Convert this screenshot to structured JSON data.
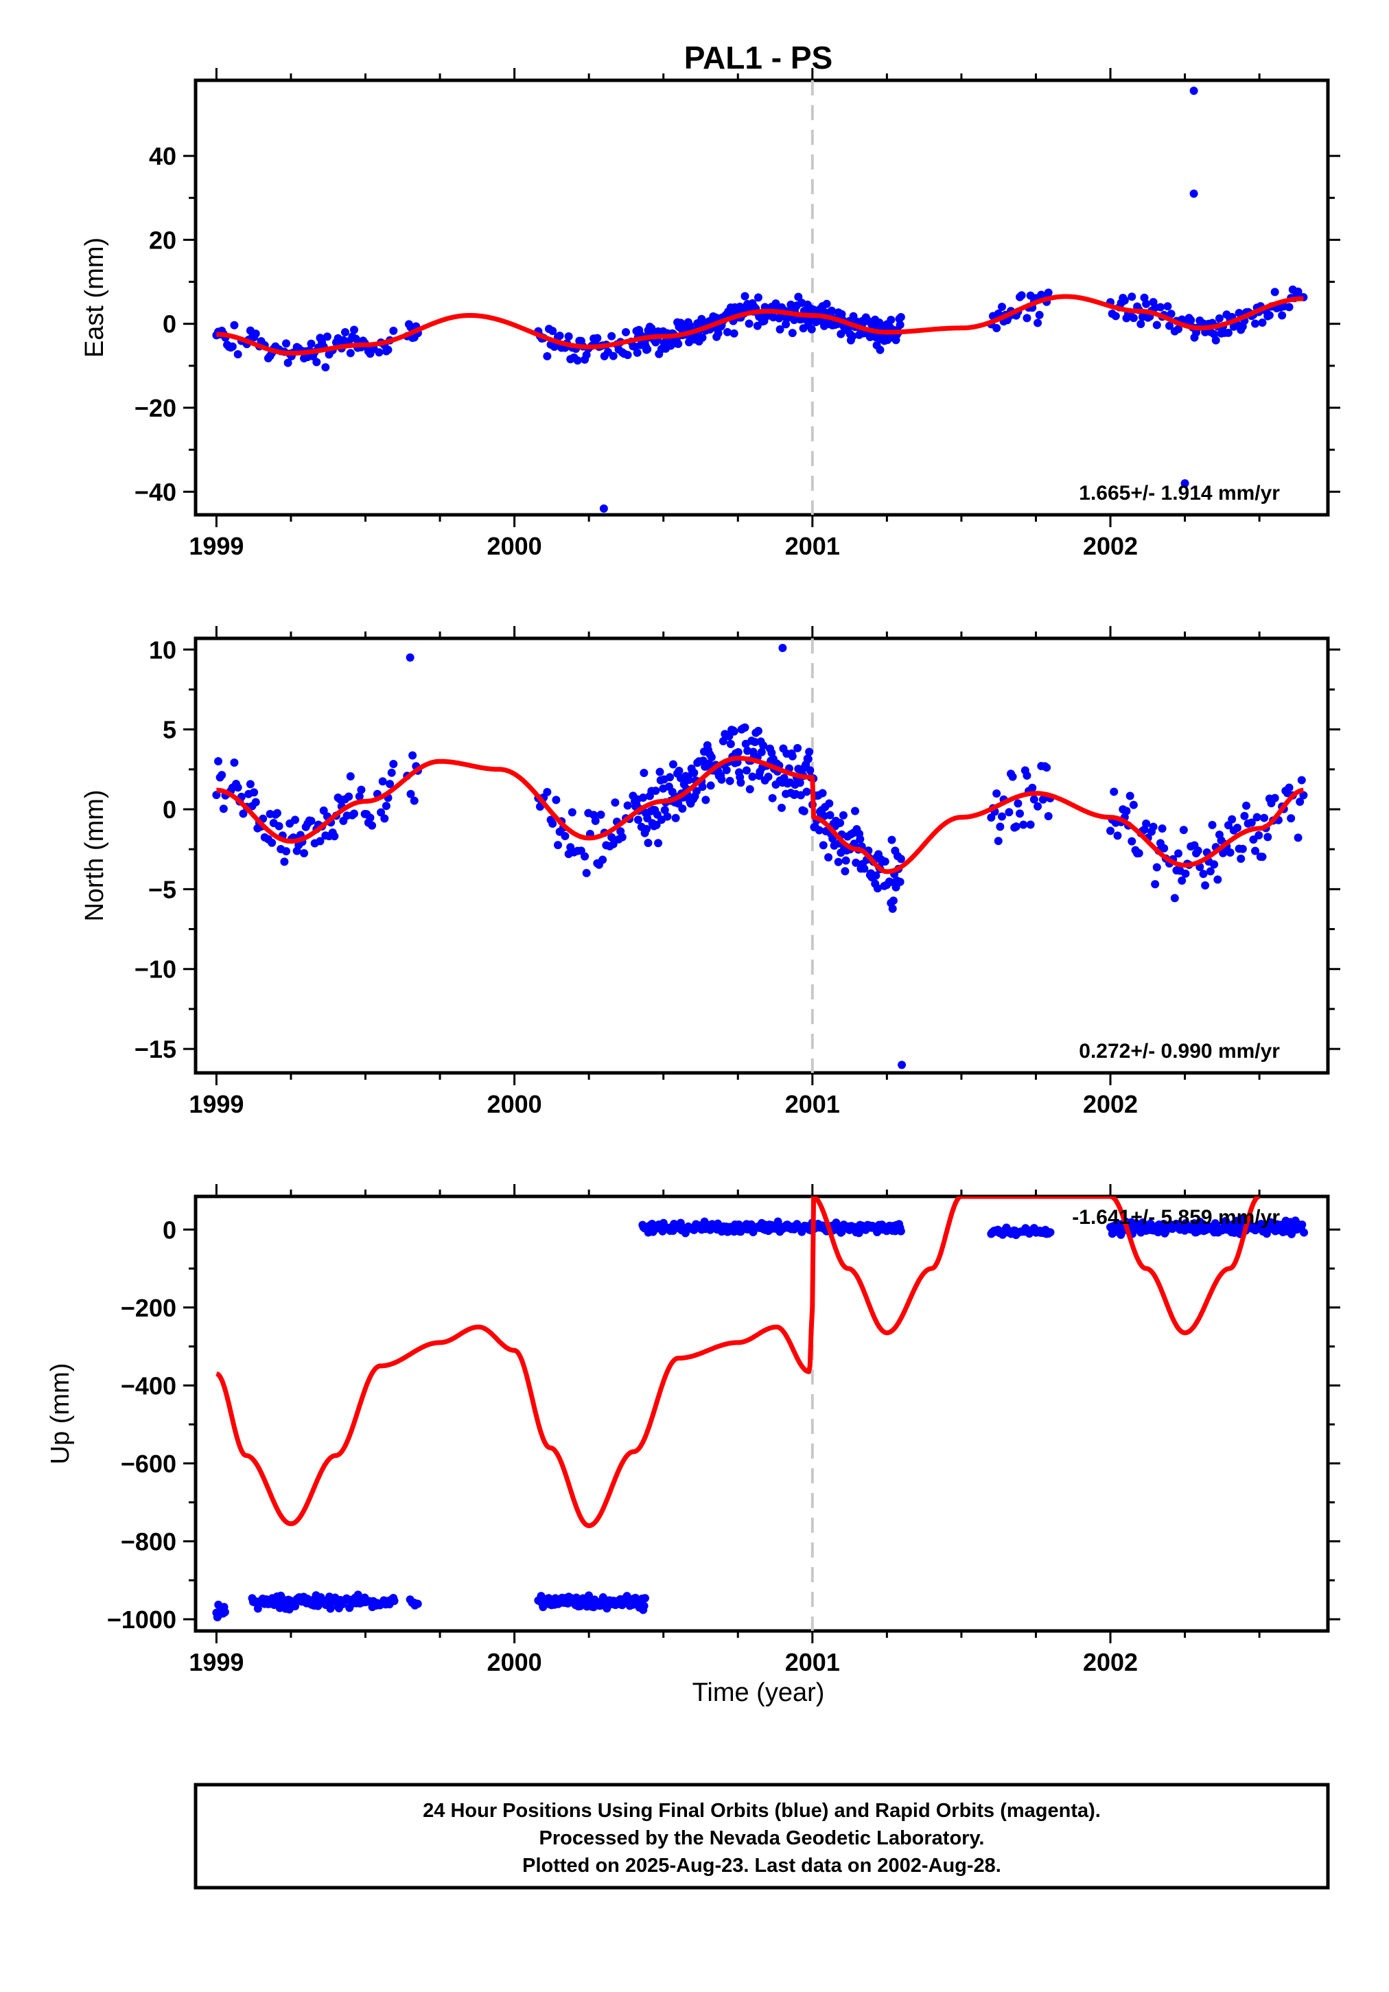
{
  "title": "PAL1 - PS",
  "xlabel": "Time (year)",
  "footer": {
    "line1": "24 Hour Positions Using Final Orbits (blue) and Rapid Orbits (magenta).",
    "line2": "Processed by the Nevada Geodetic Laboratory.",
    "line3": "Plotted on 2025-Aug-23. Last data on 2002-Aug-28."
  },
  "colors": {
    "points": "#0000ff",
    "model": "#ff0000",
    "marker": "#c8c8c8",
    "frame": "#000000"
  },
  "chart_data": [
    {
      "type": "scatter",
      "ylabel": "East (mm)",
      "rate_text": "1.665+/- 1.914 mm/yr",
      "xlim": [
        1998.93,
        2002.73
      ],
      "ylim": [
        -45.5,
        58
      ],
      "xticks": [
        1999,
        2000,
        2001,
        2002
      ],
      "yticks": [
        -40,
        -20,
        0,
        20,
        40
      ],
      "marker_line_x": 2001.0,
      "annual_amp": 4.2,
      "annual_phase": 1.2,
      "points_note": "dense daily series",
      "outliers": [
        [
          2002.28,
          55.5
        ],
        [
          2002.28,
          31
        ],
        [
          2000.3,
          -44
        ],
        [
          2002.25,
          -38
        ]
      ],
      "model": [
        [
          1999.0,
          -2.5
        ],
        [
          1999.25,
          -7
        ],
        [
          1999.5,
          -5
        ],
        [
          1999.85,
          2
        ],
        [
          2000.25,
          -5.5
        ],
        [
          2000.5,
          -3
        ],
        [
          2000.85,
          3
        ],
        [
          2001.0,
          2
        ],
        [
          2001.25,
          -2
        ],
        [
          2001.5,
          -1
        ],
        [
          2001.85,
          6.5
        ],
        [
          2002.1,
          3
        ],
        [
          2002.3,
          -1
        ],
        [
          2002.65,
          6
        ]
      ]
    },
    {
      "type": "scatter",
      "ylabel": "North (mm)",
      "rate_text": "0.272+/- 0.990 mm/yr",
      "xlim": [
        1998.93,
        2002.73
      ],
      "ylim": [
        -16.5,
        10.7
      ],
      "xticks": [
        1999,
        2000,
        2001,
        2002
      ],
      "yticks": [
        -15,
        -10,
        -5,
        0,
        5,
        10
      ],
      "marker_line_x": 2001.0,
      "outliers": [
        [
          2000.9,
          10.1
        ],
        [
          1999.65,
          9.5
        ],
        [
          2001.3,
          -16
        ]
      ],
      "model": [
        [
          1999.0,
          1.2
        ],
        [
          1999.25,
          -2
        ],
        [
          1999.5,
          0.5
        ],
        [
          1999.75,
          3
        ],
        [
          1999.95,
          2.5
        ],
        [
          2000.25,
          -1.8
        ],
        [
          2000.5,
          0.5
        ],
        [
          2000.75,
          3.2
        ],
        [
          2001.0,
          2
        ],
        [
          2001.0,
          -0.5
        ],
        [
          2001.15,
          -2.5
        ],
        [
          2001.25,
          -3.9
        ],
        [
          2001.5,
          -0.5
        ],
        [
          2001.75,
          1
        ],
        [
          2002.0,
          -0.5
        ],
        [
          2002.25,
          -3.5
        ],
        [
          2002.5,
          -1.2
        ],
        [
          2002.65,
          1.2
        ]
      ]
    },
    {
      "type": "scatter",
      "ylabel": "Up (mm)",
      "rate_text": "-1.641+/- 5.859 mm/yr",
      "xlim": [
        1998.93,
        2002.73
      ],
      "ylim": [
        -1030,
        85
      ],
      "xticks": [
        1999,
        2000,
        2001,
        2002
      ],
      "yticks": [
        -1000,
        -800,
        -600,
        -400,
        -200,
        0
      ],
      "marker_line_x": 2001.0,
      "clusters": [
        {
          "x0": 1999.0,
          "x1": 1999.03,
          "y": -980,
          "spread": 25
        },
        {
          "x0": 1999.12,
          "x1": 1999.6,
          "y": -955,
          "spread": 15
        },
        {
          "x0": 1999.65,
          "x1": 1999.68,
          "y": -960,
          "spread": 10
        },
        {
          "x0": 2000.08,
          "x1": 2000.44,
          "y": -955,
          "spread": 15
        },
        {
          "x0": 2000.43,
          "x1": 2001.3,
          "y": 5,
          "spread": 12
        },
        {
          "x0": 2001.6,
          "x1": 2001.8,
          "y": -5,
          "spread": 8
        },
        {
          "x0": 2002.0,
          "x1": 2002.65,
          "y": 5,
          "spread": 15
        }
      ],
      "model": [
        [
          1999.0,
          -370
        ],
        [
          1999.1,
          -580
        ],
        [
          1999.25,
          -755
        ],
        [
          1999.4,
          -580
        ],
        [
          1999.55,
          -350
        ],
        [
          1999.75,
          -290
        ],
        [
          1999.88,
          -250
        ],
        [
          2000.0,
          -310
        ],
        [
          2000.12,
          -560
        ],
        [
          2000.25,
          -760
        ],
        [
          2000.4,
          -570
        ],
        [
          2000.55,
          -330
        ],
        [
          2000.75,
          -290
        ],
        [
          2000.88,
          -250
        ],
        [
          2000.99,
          -365
        ],
        [
          2001.0,
          -200
        ],
        [
          2001.0,
          85
        ],
        [
          2001.12,
          -100
        ],
        [
          2001.25,
          -265
        ],
        [
          2001.4,
          -100
        ],
        [
          2001.5,
          85
        ],
        [
          2002.0,
          85
        ],
        [
          2002.12,
          -100
        ],
        [
          2002.25,
          -265
        ],
        [
          2002.4,
          -100
        ],
        [
          2002.5,
          85
        ]
      ]
    }
  ]
}
